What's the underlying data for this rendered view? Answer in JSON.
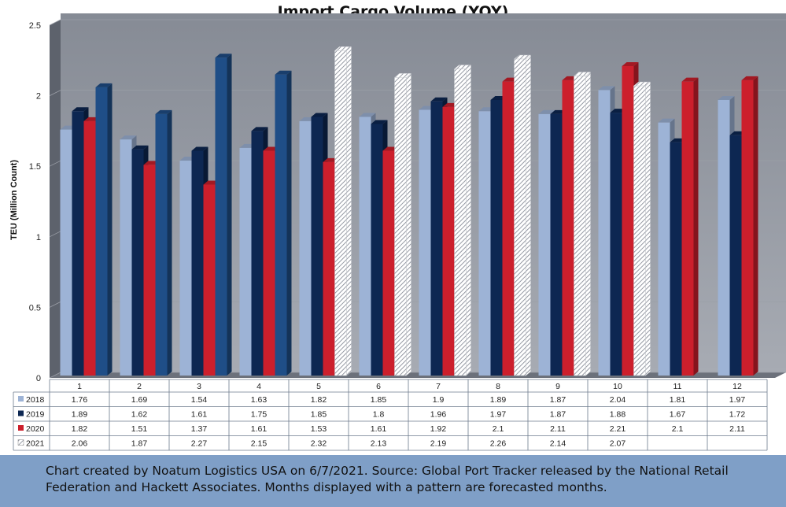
{
  "chart_data": {
    "type": "bar",
    "title": "Import Cargo Volume (YOY)",
    "xlabel": "",
    "ylabel": "TEU (Million Count)",
    "ylim": [
      0,
      2.5
    ],
    "yticks": [
      "0",
      "0.5",
      "1",
      "1.5",
      "2",
      "2.5"
    ],
    "categories": [
      "1",
      "2",
      "3",
      "4",
      "5",
      "6",
      "7",
      "8",
      "9",
      "10",
      "11",
      "12"
    ],
    "forecast_from_month": "5",
    "series": [
      {
        "name": "2018",
        "color": "#9db3d6",
        "values": [
          1.76,
          1.69,
          1.54,
          1.63,
          1.82,
          1.85,
          1.9,
          1.89,
          1.87,
          2.04,
          1.81,
          1.97
        ]
      },
      {
        "name": "2019",
        "color": "#0d2752",
        "values": [
          1.89,
          1.62,
          1.61,
          1.75,
          1.85,
          1.8,
          1.96,
          1.97,
          1.87,
          1.88,
          1.67,
          1.72
        ]
      },
      {
        "name": "2020",
        "color": "#cc1f2c",
        "values": [
          1.82,
          1.51,
          1.37,
          1.61,
          1.53,
          1.61,
          1.92,
          2.1,
          2.11,
          2.21,
          2.1,
          2.11
        ]
      },
      {
        "name": "2021",
        "color": "#1f4e87",
        "values": [
          2.06,
          1.87,
          2.27,
          2.15,
          2.32,
          2.13,
          2.19,
          2.26,
          2.14,
          2.07,
          null,
          null
        ]
      }
    ],
    "data_table": true,
    "legend": "data-table"
  },
  "footer": {
    "text": "Chart created by Noatum Logistics USA on 6/7/2021. Source: Global Port Tracker released by the National Retail Federation and Hackett Associates. Months displayed with a pattern are forecasted months."
  }
}
